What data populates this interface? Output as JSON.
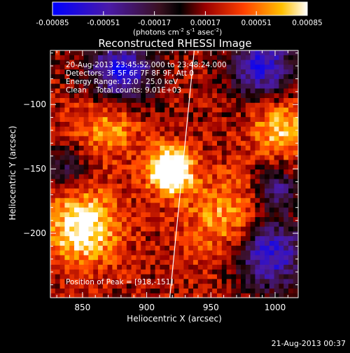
{
  "colorbar": {
    "tick_labels": [
      "-0.00085",
      "-0.00051",
      "-0.00017",
      "0.00017",
      "0.00051",
      "0.00085"
    ],
    "unit_label": "(photons cm",
    "unit_sup1": "-2",
    "unit_mid": " s",
    "unit_sup2": "-1",
    "unit_mid2": " asec",
    "unit_sup3": "-2",
    "unit_end": ")",
    "range": [
      -0.00085,
      0.00085
    ]
  },
  "chart_data": {
    "type": "heatmap",
    "title": "Reconstructed RHESSI Image",
    "xlabel": "Heliocentric X (arcsec)",
    "ylabel": "Heliocentric Y (arcsec)",
    "xlim": [
      825,
      1018
    ],
    "ylim": [
      -250,
      -58
    ],
    "x_ticks": [
      850,
      900,
      950,
      1000
    ],
    "y_ticks": [
      -100,
      -150,
      -200
    ],
    "peak": {
      "x": 918,
      "y": -151
    },
    "annotations": {
      "time_range": "20-Aug-2013 23:45:52.000 to 23:48:24.000",
      "detectors": "Detectors: 3F 5F 6F 7F 8F 9F, Att 0",
      "energy": "Energy Range: 12.0 - 25.0 keV",
      "clean": "Clean    Total counts: 9.01E+03",
      "peak_label": "Position of Peak = [918,-151]"
    },
    "limb_line": [
      [
        918,
        -250
      ],
      [
        937,
        -58
      ]
    ]
  },
  "footer": {
    "timestamp": "21-Aug-2013 00:37"
  }
}
